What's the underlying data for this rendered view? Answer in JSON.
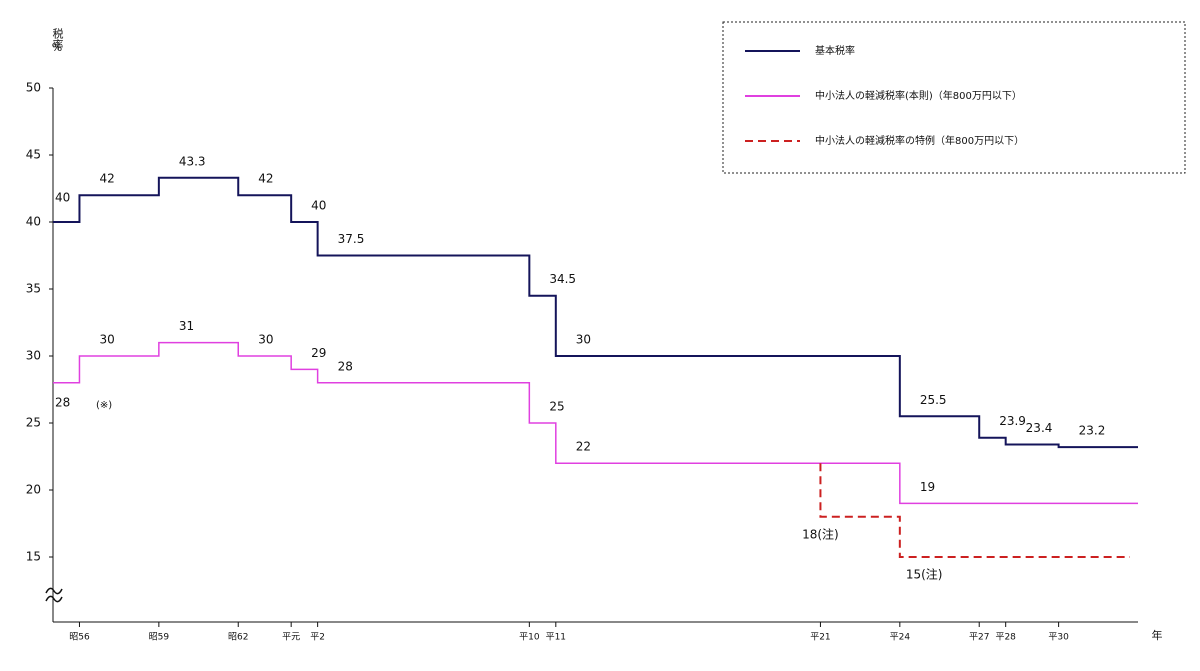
{
  "chart_data": {
    "type": "step",
    "ylabel": "税率",
    "yunit": "%",
    "xlabel": "年",
    "xlim": [
      1980,
      2021
    ],
    "ylim": [
      10,
      50
    ],
    "yticks": [
      15,
      20,
      25,
      30,
      35,
      40,
      45,
      50
    ],
    "xticks": [
      {
        "value": 1981,
        "label": "昭56"
      },
      {
        "value": 1984,
        "label": "昭59"
      },
      {
        "value": 1987,
        "label": "昭62"
      },
      {
        "value": 1989,
        "label": "平元"
      },
      {
        "value": 1990,
        "label": "平2"
      },
      {
        "value": 1998,
        "label": "平10"
      },
      {
        "value": 1999,
        "label": "平11"
      },
      {
        "value": 2009,
        "label": "平21"
      },
      {
        "value": 2012,
        "label": "平24"
      },
      {
        "value": 2015,
        "label": "平27"
      },
      {
        "value": 2016,
        "label": "平28"
      },
      {
        "value": 2018,
        "label": "平30"
      }
    ],
    "annotation": "(※)",
    "series": [
      {
        "name": "基本税率",
        "color": "#14145a",
        "dash": false,
        "x": [
          1980,
          1981,
          1984,
          1987,
          1989,
          1990,
          1998,
          1999,
          2012,
          2015,
          2016,
          2018
        ],
        "values": [
          40,
          42,
          43.3,
          42,
          40,
          37.5,
          34.5,
          30,
          25.5,
          23.9,
          23.4,
          23.2
        ]
      },
      {
        "name": "中小法人の軽減税率(本則)（年800万円以下）",
        "color": "#e040e0",
        "dash": false,
        "x": [
          1980,
          1981,
          1984,
          1987,
          1989,
          1990,
          1998,
          1999,
          2012
        ],
        "values": [
          28,
          30,
          31,
          30,
          29,
          28,
          25,
          22,
          19
        ]
      },
      {
        "name": "中小法人の軽減税率の特例（年800万円以下）",
        "color": "#cc2020",
        "dash": true,
        "x": [
          2009,
          2012
        ],
        "values": [
          18,
          15
        ],
        "value_labels": [
          "18(注)",
          "15(注)"
        ]
      }
    ]
  }
}
